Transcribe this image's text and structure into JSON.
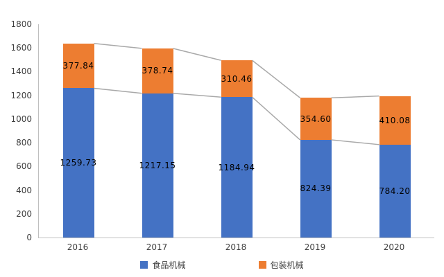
{
  "chart_data": {
    "type": "bar",
    "stacked": true,
    "title": "",
    "xlabel": "",
    "ylabel": "",
    "categories": [
      "2016",
      "2017",
      "2018",
      "2019",
      "2020"
    ],
    "series": [
      {
        "name": "食品机械",
        "color": "#4472c4",
        "values": [
          1259.73,
          1217.15,
          1184.94,
          824.39,
          784.2
        ],
        "labels": [
          "1259.73",
          "1217.15",
          "1184.94",
          "824.39",
          "784.20"
        ]
      },
      {
        "name": "包装机械",
        "color": "#ed7d31",
        "values": [
          377.84,
          378.74,
          310.46,
          354.6,
          410.08
        ],
        "labels": [
          "377.84",
          "378.74",
          "310.46",
          "354.60",
          "410.08"
        ]
      }
    ],
    "ylim": [
      0,
      1800
    ],
    "ytick_step": 200,
    "grid": false,
    "connector_color": "#a9a9a9",
    "axis_color": "#bfbfbf",
    "legend_position": "bottom"
  }
}
